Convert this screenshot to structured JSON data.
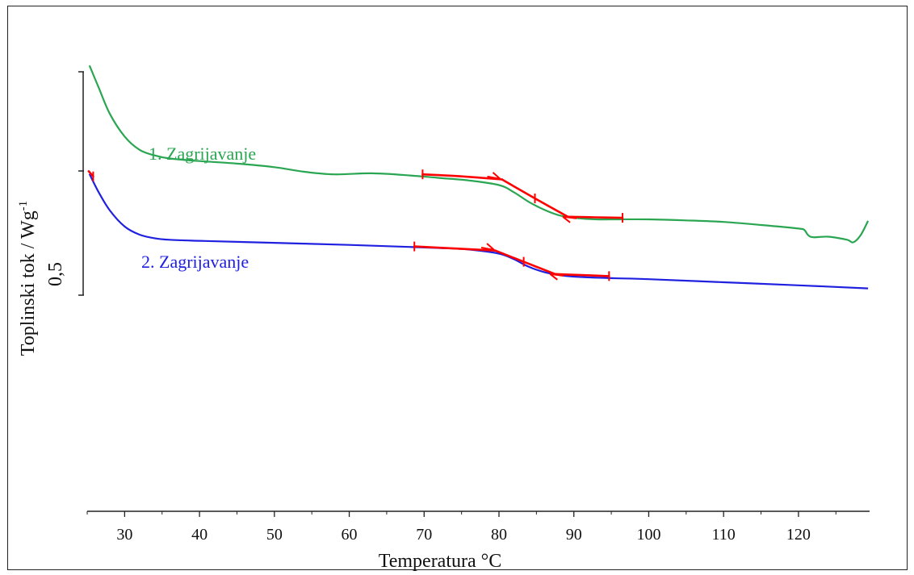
{
  "chart_data": {
    "type": "line",
    "xlabel": "Temperatura °C",
    "ylabel": "Toplinski tok / Wg",
    "ylabel_superscript": "-1",
    "scale_bar_label": "0,5",
    "xlim": [
      25,
      129.5
    ],
    "ylim": [
      0,
      1
    ],
    "x_ticks": [
      30,
      40,
      50,
      60,
      70,
      80,
      90,
      100,
      110,
      120
    ],
    "grid": false,
    "series": [
      {
        "name": "1. Zagrijavanje",
        "color": "#2aa652",
        "x": [
          25.3,
          26.5,
          28,
          30,
          32,
          34,
          36,
          40,
          45,
          50,
          54,
          58,
          63,
          68,
          72,
          76,
          80,
          82,
          84,
          86,
          88,
          90,
          93,
          96,
          100,
          105,
          110,
          115,
          120,
          120.8,
          121.3,
          122,
          124,
          126.5,
          127.3,
          128.3,
          129.3
        ],
        "y": [
          0.872,
          0.83,
          0.778,
          0.733,
          0.707,
          0.696,
          0.69,
          0.685,
          0.68,
          0.673,
          0.664,
          0.659,
          0.661,
          0.657,
          0.652,
          0.647,
          0.638,
          0.624,
          0.605,
          0.59,
          0.579,
          0.574,
          0.571,
          0.571,
          0.571,
          0.569,
          0.566,
          0.56,
          0.553,
          0.55,
          0.54,
          0.536,
          0.537,
          0.531,
          0.526,
          0.54,
          0.568
        ]
      },
      {
        "name": "2. Zagrijavanje",
        "color": "#2020e0",
        "x": [
          25.3,
          26.5,
          28,
          30,
          32,
          34,
          36,
          40,
          50,
          60,
          68,
          72,
          76,
          80,
          82,
          84,
          86,
          88,
          90,
          95,
          100,
          110,
          120,
          129.3
        ],
        "y": [
          0.66,
          0.625,
          0.589,
          0.557,
          0.541,
          0.534,
          0.531,
          0.529,
          0.525,
          0.521,
          0.517,
          0.515,
          0.512,
          0.504,
          0.493,
          0.478,
          0.468,
          0.462,
          0.459,
          0.456,
          0.454,
          0.448,
          0.442,
          0.436
        ]
      }
    ],
    "fits": {
      "color": "#ff0000",
      "segments": [
        {
          "x": [
            69.8,
            75,
            80.4
          ],
          "y": [
            0.659,
            0.655,
            0.649
          ]
        },
        {
          "x": [
            80.4,
            84.8,
            89.2
          ],
          "y": [
            0.649,
            0.612,
            0.576
          ]
        },
        {
          "x": [
            89.2,
            93,
            96.5
          ],
          "y": [
            0.576,
            0.575,
            0.574
          ]
        },
        {
          "x": [
            68.7,
            74,
            79.5
          ],
          "y": [
            0.518,
            0.514,
            0.51
          ]
        },
        {
          "x": [
            79.5,
            83.3,
            87.5
          ],
          "y": [
            0.51,
            0.488,
            0.464
          ]
        },
        {
          "x": [
            87.5,
            91,
            94.7
          ],
          "y": [
            0.464,
            0.462,
            0.46
          ]
        },
        {
          "x": [
            25.2,
            25.8
          ],
          "y": [
            0.665,
            0.655
          ]
        }
      ],
      "markers": [
        {
          "x": 69.8,
          "y": 0.659,
          "kind": "vtick"
        },
        {
          "x": 79.3,
          "y": 0.65,
          "kind": "arrow-right"
        },
        {
          "x": 84.8,
          "y": 0.612,
          "kind": "vtick"
        },
        {
          "x": 89.5,
          "y": 0.576,
          "kind": "arrow-left"
        },
        {
          "x": 96.5,
          "y": 0.574,
          "kind": "vtick"
        },
        {
          "x": 68.7,
          "y": 0.518,
          "kind": "vtick"
        },
        {
          "x": 78.5,
          "y": 0.511,
          "kind": "arrow-right"
        },
        {
          "x": 83.3,
          "y": 0.488,
          "kind": "vtick"
        },
        {
          "x": 87.8,
          "y": 0.464,
          "kind": "arrow-left"
        },
        {
          "x": 94.7,
          "y": 0.46,
          "kind": "vtick"
        },
        {
          "x": 25.8,
          "y": 0.655,
          "kind": "vtick"
        }
      ]
    },
    "series_labels": [
      {
        "text": "1. Zagrijavanje",
        "color": "#2aa652"
      },
      {
        "text": "2. Zagrijavanje",
        "color": "#2020e0"
      }
    ]
  }
}
